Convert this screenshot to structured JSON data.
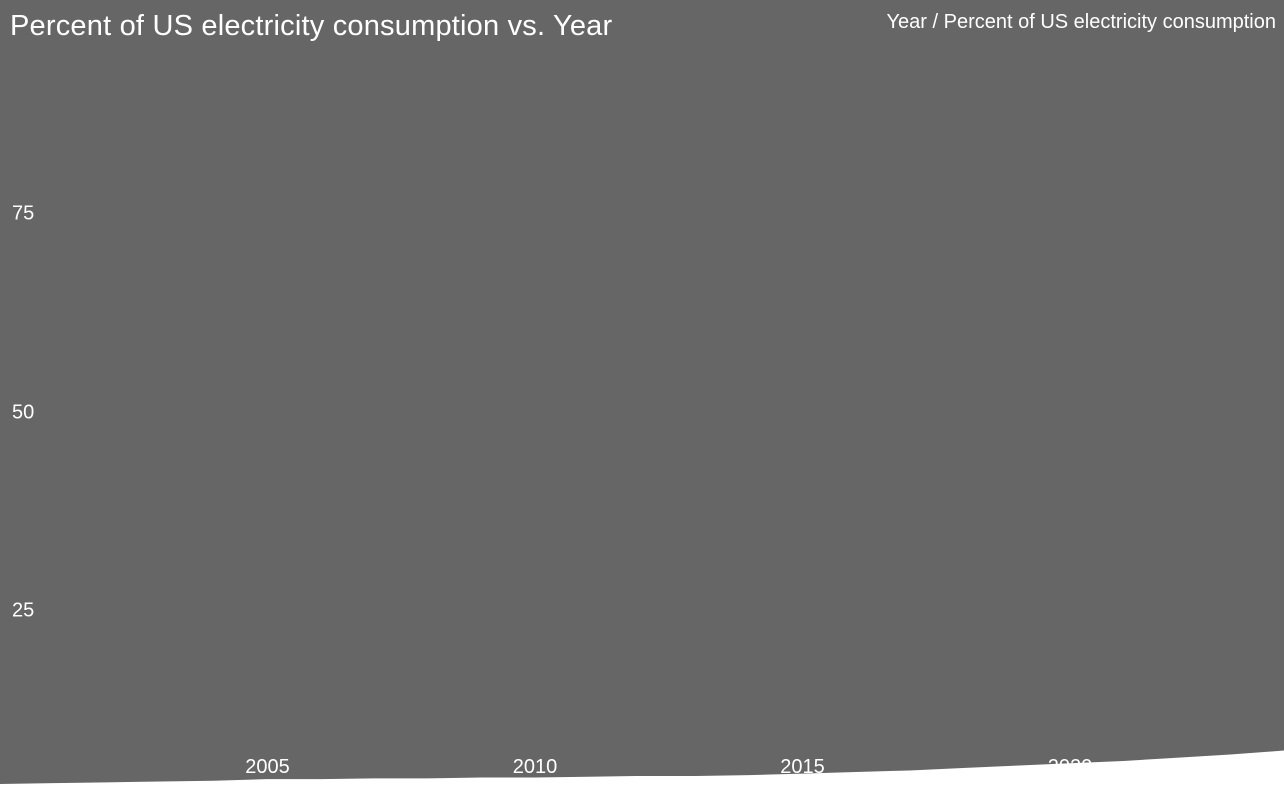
{
  "chart": {
    "title": "Percent of US electricity consumption vs. Year",
    "axis_legend": "Year / Percent of US electricity consumption"
  },
  "chart_data": {
    "type": "area",
    "title": "Percent of US electricity consumption vs. Year",
    "xlabel": "Year",
    "ylabel": "Percent of US electricity consumption",
    "x": [
      2000,
      2001,
      2002,
      2003,
      2004,
      2005,
      2006,
      2007,
      2008,
      2009,
      2010,
      2011,
      2012,
      2013,
      2014,
      2015,
      2016,
      2017,
      2018,
      2019,
      2020,
      2021,
      2022,
      2023,
      2024
    ],
    "values": [
      3.0,
      3.1,
      3.2,
      3.3,
      3.4,
      3.6,
      3.6,
      3.7,
      3.7,
      3.8,
      3.8,
      3.9,
      4.0,
      4.0,
      4.1,
      4.3,
      4.5,
      4.7,
      5.0,
      5.3,
      5.6,
      5.9,
      6.3,
      6.7,
      7.2
    ],
    "x_ticks": [
      2005,
      2010,
      2015,
      2020
    ],
    "y_ticks": [
      25,
      50,
      75
    ],
    "xlim": [
      2000,
      2024
    ],
    "ylim": [
      0,
      100
    ],
    "grid": false,
    "legend": "none",
    "colors": {
      "background": "#666666",
      "text": "#ffffff",
      "series": "#ffffff"
    }
  }
}
